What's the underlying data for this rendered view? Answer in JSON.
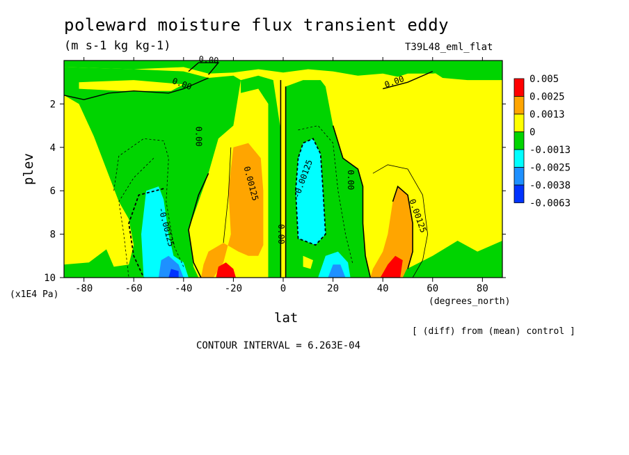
{
  "title": "poleward moisture flux transient eddy",
  "units": "(m s-1 kg kg-1)",
  "run_label": "T39L48_eml_flat",
  "note": "[ (diff) from (mean) control ]",
  "contour_interval": "CONTOUR INTERVAL = 6.263E-04",
  "chart_data": {
    "type": "heatmap",
    "xlabel": "lat",
    "xunit": "(degrees_north)",
    "ylabel": "plev",
    "yunit": "(x1E4 Pa)",
    "xlim": [
      -88,
      88
    ],
    "ylim": [
      10,
      0
    ],
    "xticks": [
      -80,
      -60,
      -40,
      -20,
      0,
      20,
      40,
      60,
      80
    ],
    "yticks": [
      2,
      4,
      6,
      8,
      10
    ],
    "colorbar": {
      "levels": [
        "0.005",
        "0.0025",
        "0.0013",
        "0",
        "-0.0013",
        "-0.0025",
        "-0.0038",
        "-0.0063"
      ],
      "colors": [
        "#ff0000",
        "#ffa500",
        "#ffff00",
        "#00d400",
        "#00ffff",
        "#1e90ff",
        "#0033ff"
      ]
    },
    "contour_labels": [
      {
        "text": "0.00",
        "x": -35,
        "y": 3.5
      },
      {
        "text": "0.00125",
        "x": -14,
        "y": 5.7
      },
      {
        "text": "-0.00125",
        "x": -48,
        "y": 7.7
      },
      {
        "text": "0.00",
        "x": -2,
        "y": 8.0
      },
      {
        "text": "-0.00125",
        "x": 9,
        "y": 5.5
      },
      {
        "text": "0.00",
        "x": 26,
        "y": 5.5
      },
      {
        "text": "0.00125",
        "x": 53,
        "y": 7.2
      },
      {
        "text": "0.00",
        "x": -41,
        "y": 1.2
      },
      {
        "text": "0.00",
        "x": -30,
        "y": 0.1
      },
      {
        "text": "0.00",
        "x": 45,
        "y": 1.1
      }
    ]
  }
}
